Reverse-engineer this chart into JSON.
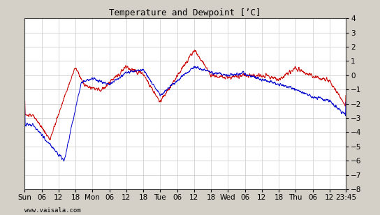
{
  "title": "Temperature and Dewpoint [ʼC]",
  "background_color": "#d4d0c8",
  "plot_bg_color": "#ffffff",
  "grid_color": "#c8c8c8",
  "temp_color": "#cc0000",
  "dewpoint_color": "#0000cc",
  "ylim": [
    -8,
    4
  ],
  "watermark": "www.vaisala.com",
  "xtick_positions": [
    0,
    6,
    12,
    18,
    24,
    30,
    36,
    42,
    48,
    54,
    60,
    66,
    72,
    78,
    84,
    90,
    96,
    102,
    108,
    113.75
  ],
  "xtick_labels": [
    "Sun",
    "06",
    "12",
    "18",
    "Mon",
    "06",
    "12",
    "18",
    "Tue",
    "06",
    "12",
    "18",
    "Wed",
    "06",
    "12",
    "18",
    "Thu",
    "06",
    "12",
    "23:45"
  ],
  "xlim": [
    0,
    113.75
  ],
  "num_points": 2000
}
